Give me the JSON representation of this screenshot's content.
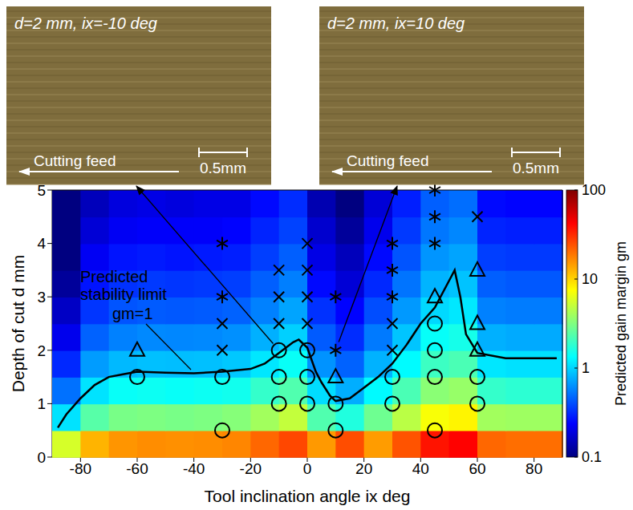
{
  "chart_data": {
    "type": "scatter",
    "xlabel": "Tool inclination angle ix deg",
    "ylabel": "Depth of cut d mm",
    "xlim": [
      -90,
      90
    ],
    "xticks": [
      -80,
      -60,
      -40,
      -20,
      0,
      20,
      40,
      60,
      80
    ],
    "ylim": [
      0,
      5
    ],
    "yticks": [
      0,
      1,
      2,
      3,
      4,
      5
    ],
    "heatmap": {
      "x_edges": [
        -90,
        -80,
        -70,
        -60,
        -50,
        -40,
        -30,
        -20,
        -10,
        0,
        10,
        20,
        30,
        40,
        50,
        60,
        70,
        80,
        90
      ],
      "y_edges": [
        0,
        0.5,
        1,
        1.5,
        2,
        2.5,
        3,
        3.5,
        4,
        4.5,
        5
      ],
      "values": [
        [
          5.7,
          12.5,
          15.4,
          16.2,
          15.9,
          16.2,
          17,
          21,
          26,
          15,
          25,
          14.7,
          24,
          37,
          42,
          21,
          20,
          20
        ],
        [
          1.1,
          2.4,
          3.0,
          3.1,
          3.0,
          3.1,
          3.3,
          4.0,
          5.0,
          2.3,
          1.66,
          2.8,
          4.7,
          7.2,
          8,
          4.0,
          3.9,
          3.9
        ],
        [
          0.51,
          1.1,
          1.4,
          1.45,
          1.4,
          1.45,
          1.5,
          1.9,
          2.3,
          1.06,
          0.77,
          1.3,
          2.2,
          3.4,
          3.7,
          1.9,
          1.8,
          1.8
        ],
        [
          0.31,
          0.68,
          0.83,
          0.87,
          0.86,
          0.87,
          0.92,
          1.13,
          1.41,
          0.64,
          0.46,
          0.79,
          1.31,
          2.0,
          2.2,
          1.13,
          1.09,
          1.09
        ],
        [
          0.21,
          0.46,
          0.57,
          0.6,
          0.59,
          0.6,
          0.63,
          0.78,
          0.97,
          0.44,
          0.32,
          0.54,
          0.9,
          1.39,
          1.54,
          0.78,
          0.75,
          0.75
        ],
        [
          0.16,
          0.34,
          0.42,
          0.44,
          0.43,
          0.44,
          0.46,
          0.57,
          0.72,
          0.33,
          0.24,
          0.4,
          0.67,
          1.03,
          1.14,
          0.57,
          0.55,
          0.55
        ],
        [
          0.12,
          0.27,
          0.33,
          0.35,
          0.34,
          0.35,
          0.36,
          0.45,
          0.56,
          0.25,
          0.18,
          0.31,
          0.52,
          0.8,
          0.89,
          0.45,
          0.43,
          0.43
        ],
        [
          0.1,
          0.22,
          0.27,
          0.28,
          0.27,
          0.28,
          0.29,
          0.36,
          0.45,
          0.2,
          0.15,
          0.25,
          0.42,
          0.65,
          0.72,
          0.36,
          0.35,
          0.35
        ],
        [
          0.1,
          0.18,
          0.22,
          0.23,
          0.23,
          0.23,
          0.24,
          0.3,
          0.37,
          0.17,
          0.12,
          0.21,
          0.35,
          0.53,
          0.59,
          0.3,
          0.29,
          0.29
        ],
        [
          0.1,
          0.15,
          0.19,
          0.2,
          0.19,
          0.2,
          0.2,
          0.25,
          0.32,
          0.14,
          0.1,
          0.18,
          0.29,
          0.45,
          0.5,
          0.25,
          0.24,
          0.24
        ]
      ],
      "colorbar": {
        "range": [
          0.1,
          100
        ],
        "ticks": [
          0.1,
          1,
          10,
          100
        ],
        "log": true,
        "label": "Predicted gain margin gm"
      }
    },
    "stability_limit": {
      "type": "line",
      "line_style": "solid",
      "color": "#000000",
      "x": [
        -88,
        -85,
        -80,
        -75,
        -70,
        -65,
        -60,
        -50,
        -40,
        -30,
        -20,
        -15,
        -10,
        -5,
        -3,
        0,
        3,
        5,
        8,
        10,
        15,
        20,
        25,
        30,
        35,
        40,
        45,
        50,
        52,
        54,
        56,
        60,
        70,
        80,
        88
      ],
      "values": [
        0.55,
        0.8,
        1.1,
        1.35,
        1.5,
        1.55,
        1.6,
        1.58,
        1.57,
        1.6,
        1.65,
        1.75,
        1.95,
        2.15,
        2.2,
        2.05,
        1.6,
        1.4,
        1.15,
        1.05,
        1.1,
        1.3,
        1.5,
        1.75,
        2.1,
        2.5,
        2.8,
        3.3,
        3.5,
        3.0,
        2.3,
        1.95,
        1.85,
        1.85,
        1.85
      ]
    },
    "annotations": [
      "Predicted stability limit",
      "gm=1"
    ],
    "series": [
      {
        "type": "scatter",
        "marker": "circle",
        "color": "#000000",
        "x": [
          -60,
          -30,
          -30,
          -10,
          -10,
          -10,
          0,
          0,
          0,
          10,
          10,
          30,
          30,
          45,
          45,
          45,
          45,
          60,
          60
        ],
        "values": [
          1.5,
          0.5,
          1.5,
          1,
          1.5,
          2,
          1,
          1.5,
          2,
          0.5,
          1,
          1,
          1.5,
          0.5,
          1.5,
          2,
          2.5,
          1,
          1.5
        ]
      },
      {
        "type": "scatter",
        "marker": "triangle",
        "color": "#000000",
        "x": [
          -60,
          10,
          45,
          60,
          60,
          60
        ],
        "values": [
          2,
          1.5,
          3,
          2,
          2.5,
          3.5
        ]
      },
      {
        "type": "scatter",
        "marker": "x",
        "color": "#000000",
        "x": [
          -30,
          -30,
          -10,
          -10,
          -10,
          0,
          0,
          0,
          0,
          30,
          30,
          60
        ],
        "values": [
          2,
          2.5,
          2.5,
          3,
          3.5,
          2.5,
          3,
          3.5,
          4,
          2,
          2.5,
          4.5
        ]
      },
      {
        "type": "scatter",
        "marker": "asterisk",
        "color": "#000000",
        "x": [
          -30,
          -30,
          10,
          10,
          30,
          30,
          30,
          45,
          45,
          45
        ],
        "values": [
          3,
          4,
          2,
          3,
          3,
          3.5,
          4,
          4,
          4.5,
          5
        ]
      }
    ],
    "insets": [
      {
        "title": "d=2 mm, ix=-10 deg",
        "feed": "Cutting feed",
        "scale": "0.5mm",
        "points_to": [
          -10,
          2
        ]
      },
      {
        "title": "d=2 mm, ix=10 deg",
        "feed": "Cutting feed",
        "scale": "0.5mm",
        "points_to": [
          10,
          2
        ]
      }
    ]
  }
}
